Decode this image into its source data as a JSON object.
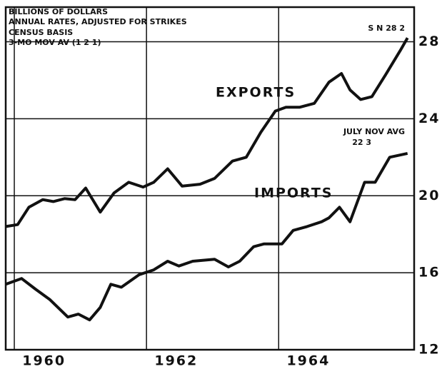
{
  "chart_data": {
    "type": "line",
    "annotations": [
      "BILLIONS OF DOLLARS",
      "ANNUAL RATES, ADJUSTED FOR STRIKES",
      "CENSUS BASIS",
      "3-MO MOV AV (1 2 1)",
      "S N 28 2",
      "JULY NOV  AVG",
      "22 3"
    ],
    "xlim": [
      1959.87,
      1966.05
    ],
    "xticks": [
      1960,
      1962,
      1964
    ],
    "ylim": [
      12,
      29.8
    ],
    "yticks": [
      12,
      16,
      20,
      24,
      28
    ],
    "grid": true,
    "series": [
      {
        "name": "EXPORTS",
        "color": "#111111",
        "x": [
          1959.87,
          1960.05,
          1960.22,
          1960.43,
          1960.59,
          1960.76,
          1960.92,
          1961.08,
          1961.3,
          1961.51,
          1961.73,
          1961.95,
          1962.11,
          1962.32,
          1962.54,
          1962.81,
          1963.03,
          1963.3,
          1963.51,
          1963.73,
          1963.95,
          1964.11,
          1964.32,
          1964.54,
          1964.76,
          1964.95,
          1965.08,
          1965.24,
          1965.41,
          1965.62,
          1965.84,
          1965.95
        ],
        "values": [
          18.4,
          18.5,
          19.4,
          19.8,
          19.7,
          19.85,
          19.8,
          20.4,
          19.15,
          20.15,
          20.7,
          20.45,
          20.7,
          21.4,
          20.5,
          20.6,
          20.9,
          21.8,
          22.0,
          23.3,
          24.4,
          24.6,
          24.6,
          24.8,
          25.9,
          26.35,
          25.5,
          25.0,
          25.15,
          26.3,
          27.55,
          28.2
        ]
      },
      {
        "name": "IMPORTS",
        "color": "#111111",
        "x": [
          1959.87,
          1960.11,
          1960.32,
          1960.54,
          1960.81,
          1960.97,
          1961.14,
          1961.3,
          1961.46,
          1961.62,
          1961.89,
          1962.11,
          1962.32,
          1962.49,
          1962.7,
          1963.03,
          1963.24,
          1963.41,
          1963.62,
          1963.78,
          1964.05,
          1964.22,
          1964.43,
          1964.65,
          1964.76,
          1964.92,
          1965.08,
          1965.3,
          1965.46,
          1965.68,
          1965.95
        ],
        "values": [
          15.4,
          15.7,
          15.15,
          14.6,
          13.7,
          13.85,
          13.55,
          14.2,
          15.4,
          15.25,
          15.9,
          16.15,
          16.6,
          16.35,
          16.6,
          16.7,
          16.3,
          16.6,
          17.35,
          17.5,
          17.5,
          18.2,
          18.4,
          18.65,
          18.85,
          19.4,
          18.65,
          20.7,
          20.7,
          22.0,
          22.2
        ]
      }
    ]
  }
}
